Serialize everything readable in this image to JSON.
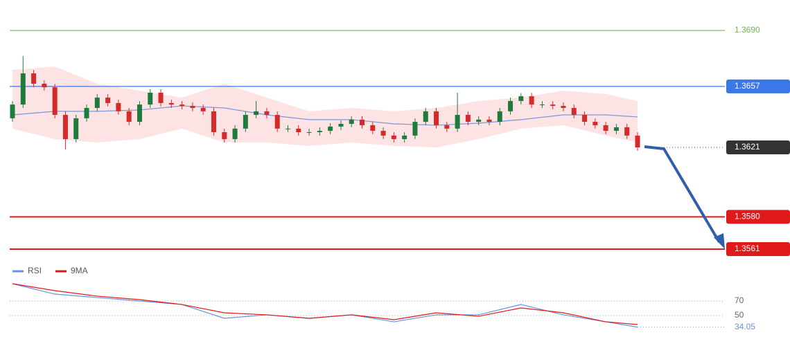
{
  "chart_data": {
    "type": "candlestick",
    "ylim": [
      1.3552,
      1.3708
    ],
    "colors": {
      "up": "#1e7b3c",
      "down": "#d62a2a"
    },
    "open": [
      1.36382,
      1.36463,
      1.36647,
      1.36586,
      1.36565,
      1.36402,
      1.36259,
      1.36382,
      1.36443,
      1.36504,
      1.36472,
      1.36423,
      1.36361,
      1.36463,
      1.36533,
      1.36472,
      1.36463,
      1.36455,
      1.36443,
      1.36423,
      1.363,
      1.36259,
      1.36321,
      1.36402,
      1.36423,
      1.36402,
      1.36321,
      1.36321,
      1.363,
      1.363,
      1.36308,
      1.36333,
      1.36349,
      1.36374,
      1.36341,
      1.36308,
      1.3628,
      1.36259,
      1.3628,
      1.36361,
      1.36423,
      1.36341,
      1.36321,
      1.36402,
      1.36361,
      1.36374,
      1.36361,
      1.36423,
      1.36484,
      1.36512,
      1.36463,
      1.36463,
      1.36455,
      1.36443,
      1.36402,
      1.36361,
      1.36341,
      1.36308,
      1.36329,
      1.3628
    ],
    "high": [
      1.36483,
      1.36749,
      1.36667,
      1.36606,
      1.36585,
      1.36422,
      1.36402,
      1.36463,
      1.36524,
      1.36524,
      1.36492,
      1.36443,
      1.36483,
      1.36553,
      1.36553,
      1.36492,
      1.36483,
      1.36475,
      1.36463,
      1.36443,
      1.3632,
      1.36341,
      1.36422,
      1.36484,
      1.36443,
      1.36422,
      1.36341,
      1.36341,
      1.3632,
      1.36328,
      1.36353,
      1.36369,
      1.36394,
      1.36394,
      1.36361,
      1.36328,
      1.363,
      1.363,
      1.36381,
      1.36443,
      1.36443,
      1.36361,
      1.36533,
      1.36422,
      1.36394,
      1.36394,
      1.36443,
      1.36504,
      1.3653,
      1.36532,
      1.36483,
      1.36483,
      1.36475,
      1.36463,
      1.36422,
      1.36381,
      1.36361,
      1.36349,
      1.36349,
      1.363
    ],
    "low": [
      1.36362,
      1.36443,
      1.36566,
      1.36545,
      1.36382,
      1.36198,
      1.36239,
      1.36362,
      1.36423,
      1.36452,
      1.36403,
      1.36341,
      1.36341,
      1.36443,
      1.36452,
      1.36443,
      1.36435,
      1.36423,
      1.36403,
      1.3628,
      1.36239,
      1.36239,
      1.36301,
      1.36382,
      1.36382,
      1.36301,
      1.36301,
      1.3628,
      1.3628,
      1.3628,
      1.36288,
      1.36313,
      1.36329,
      1.36321,
      1.36288,
      1.3626,
      1.36239,
      1.36239,
      1.3626,
      1.36341,
      1.36321,
      1.36301,
      1.36301,
      1.36341,
      1.36341,
      1.36341,
      1.36341,
      1.36403,
      1.36464,
      1.36443,
      1.36443,
      1.36435,
      1.36423,
      1.36382,
      1.36341,
      1.36321,
      1.36288,
      1.36288,
      1.3626,
      1.3619
    ],
    "close": [
      1.36463,
      1.36647,
      1.36586,
      1.36565,
      1.36402,
      1.36259,
      1.36382,
      1.36443,
      1.36504,
      1.36472,
      1.36423,
      1.36361,
      1.36463,
      1.36533,
      1.36472,
      1.36463,
      1.36455,
      1.36443,
      1.36423,
      1.363,
      1.36259,
      1.36321,
      1.36402,
      1.36423,
      1.36402,
      1.36321,
      1.36321,
      1.363,
      1.363,
      1.36308,
      1.36333,
      1.36349,
      1.36374,
      1.36341,
      1.36308,
      1.3628,
      1.36259,
      1.3628,
      1.36361,
      1.36423,
      1.36341,
      1.36321,
      1.36402,
      1.36361,
      1.36374,
      1.36361,
      1.36423,
      1.36484,
      1.36512,
      1.36463,
      1.36463,
      1.36455,
      1.36443,
      1.36402,
      1.36361,
      1.36341,
      1.36308,
      1.36329,
      1.3628,
      1.3621
    ],
    "bands": {
      "x": [
        0,
        4,
        8,
        12,
        16,
        20,
        24,
        28,
        32,
        36,
        40,
        44,
        48,
        52,
        56,
        59
      ],
      "upper": [
        1.36667,
        1.36688,
        1.36586,
        1.36545,
        1.36504,
        1.36586,
        1.36504,
        1.36423,
        1.36443,
        1.36423,
        1.36443,
        1.36484,
        1.36504,
        1.36545,
        1.36525,
        1.36484
      ],
      "lower": [
        1.36321,
        1.36259,
        1.36239,
        1.36259,
        1.36321,
        1.36239,
        1.36239,
        1.36219,
        1.36239,
        1.36219,
        1.3621,
        1.36259,
        1.36321,
        1.36341,
        1.3628,
        1.36239
      ],
      "middle": [
        1.36402,
        1.36423,
        1.36423,
        1.36431,
        1.36455,
        1.36443,
        1.36402,
        1.36374,
        1.36374,
        1.36349,
        1.36341,
        1.36353,
        1.36374,
        1.36402,
        1.36402,
        1.3639
      ],
      "fill": "#fde3e3",
      "middle_color": "#7b97d6"
    },
    "levels": [
      {
        "value": 1.369,
        "label": "1.3690",
        "color": "#77b255",
        "boxed": false,
        "line": "solid"
      },
      {
        "value": 1.3657,
        "label": "1.3657",
        "color": "#3b78e7",
        "boxed": true,
        "line": "solid"
      },
      {
        "value": 1.3621,
        "label": "1.3621",
        "color": "#333333",
        "boxed": true,
        "line": "dotted"
      },
      {
        "value": 1.358,
        "label": "1.3580",
        "color": "#e01919",
        "boxed": true,
        "line": "solid"
      },
      {
        "value": 1.3561,
        "label": "1.3561",
        "color": "#e01919",
        "boxed": true,
        "line": "solid"
      }
    ],
    "rsi": {
      "type": "line",
      "ylim": [
        20,
        100
      ],
      "yticks": [
        70,
        50
      ],
      "grid": true,
      "x": [
        0,
        4,
        8,
        12,
        16,
        20,
        24,
        28,
        32,
        36,
        40,
        44,
        48,
        52,
        56,
        59
      ],
      "series": [
        {
          "name": "RSI",
          "color": "#6b8fe0",
          "values": [
            93.8,
            79.5,
            74.8,
            70,
            65.2,
            46.2,
            51,
            46.2,
            51,
            41.4,
            51,
            51,
            65.2,
            51,
            41.4,
            34.05
          ]
        },
        {
          "name": "9MA",
          "color": "#e01919",
          "values": [
            93.8,
            84.3,
            76.7,
            71.9,
            65.2,
            53.8,
            51,
            46.2,
            51,
            44.3,
            53.8,
            49,
            60.5,
            53.8,
            41.4,
            37.6
          ]
        }
      ]
    }
  }
}
